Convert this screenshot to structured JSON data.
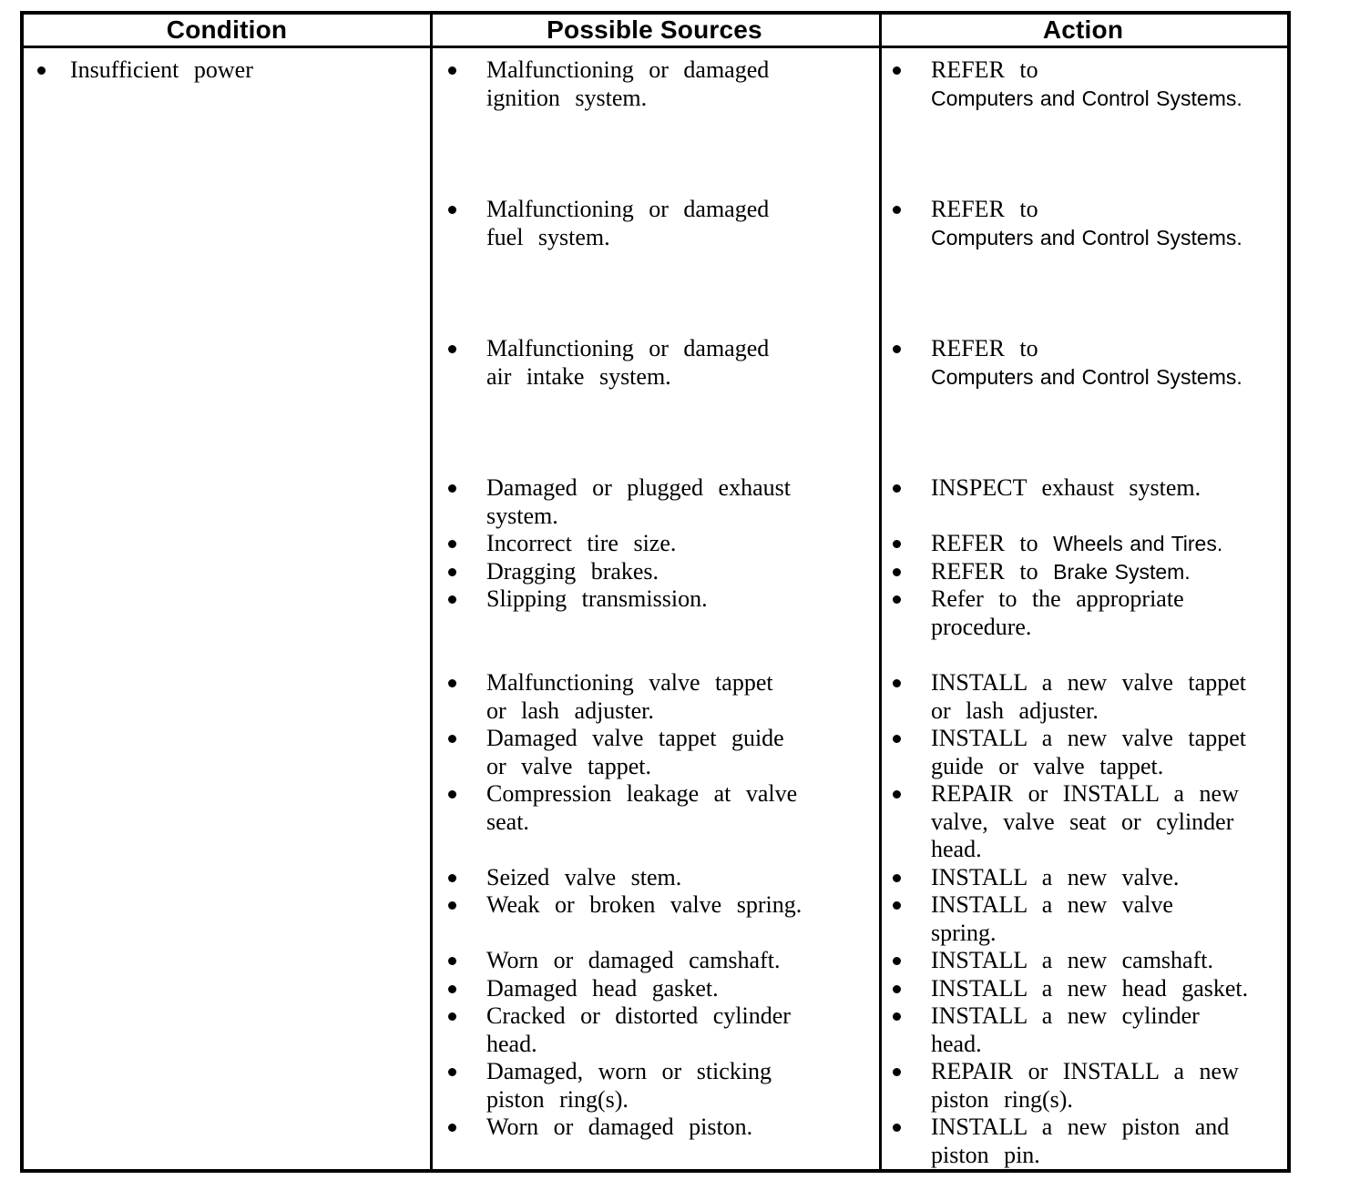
{
  "colors": {
    "ink": "#000000",
    "paper": "#ffffff"
  },
  "table": {
    "headers": [
      "Condition",
      "Possible Sources",
      "Action"
    ],
    "condition": "Insufficient power",
    "rows": [
      {
        "gap": 0,
        "source_lines": [
          [
            {
              "t": "Malfunctioning or damaged"
            }
          ],
          [
            {
              "t": "ignition system."
            }
          ]
        ],
        "action_lines": [
          [
            {
              "t": "REFER to"
            }
          ],
          [
            {
              "t": "Computers and Control Systems.",
              "f": "sans"
            }
          ]
        ]
      },
      {
        "gap": 92,
        "source_lines": [
          [
            {
              "t": "Malfunctioning or damaged"
            }
          ],
          [
            {
              "t": "fuel system."
            }
          ]
        ],
        "action_lines": [
          [
            {
              "t": "REFER to"
            }
          ],
          [
            {
              "t": "Computers and Control Systems.",
              "f": "sans"
            }
          ]
        ]
      },
      {
        "gap": 92,
        "source_lines": [
          [
            {
              "t": "Malfunctioning or damaged"
            }
          ],
          [
            {
              "t": "air intake system."
            }
          ]
        ],
        "action_lines": [
          [
            {
              "t": "REFER to"
            }
          ],
          [
            {
              "t": "Computers and Control Systems.",
              "f": "sans"
            }
          ]
        ]
      },
      {
        "gap": 92,
        "source_lines": [
          [
            {
              "t": "Damaged or plugged exhaust"
            }
          ],
          [
            {
              "t": "system."
            }
          ]
        ],
        "action_lines": [
          [
            {
              "t": "INSPECT exhaust system."
            }
          ]
        ]
      },
      {
        "gap": 0,
        "source_lines": [
          [
            {
              "t": "Incorrect tire size."
            }
          ]
        ],
        "action_lines": [
          [
            {
              "t": "REFER to "
            },
            {
              "t": "Wheels and Tires.",
              "f": "sans"
            }
          ]
        ]
      },
      {
        "gap": 0,
        "source_lines": [
          [
            {
              "t": "Dragging brakes."
            }
          ]
        ],
        "action_lines": [
          [
            {
              "t": "REFER to "
            },
            {
              "t": "Brake System.",
              "f": "sans"
            }
          ]
        ]
      },
      {
        "gap": 0,
        "source_lines": [
          [
            {
              "t": "Slipping transmission."
            }
          ]
        ],
        "action_lines": [
          [
            {
              "t": "Refer to the appropriate"
            }
          ],
          [
            {
              "t": "procedure."
            }
          ]
        ]
      },
      {
        "gap": 31,
        "source_lines": [
          [
            {
              "t": "Malfunctioning valve tappet"
            }
          ],
          [
            {
              "t": "or lash adjuster."
            }
          ]
        ],
        "action_lines": [
          [
            {
              "t": "INSTALL a new valve tappet"
            }
          ],
          [
            {
              "t": "or lash adjuster."
            }
          ]
        ]
      },
      {
        "gap": 0,
        "source_lines": [
          [
            {
              "t": "Damaged valve tappet guide"
            }
          ],
          [
            {
              "t": "or valve tappet."
            }
          ]
        ],
        "action_lines": [
          [
            {
              "t": "INSTALL a new valve tappet"
            }
          ],
          [
            {
              "t": "guide or valve tappet."
            }
          ]
        ]
      },
      {
        "gap": 0,
        "source_lines": [
          [
            {
              "t": "Compression leakage at valve"
            }
          ],
          [
            {
              "t": "seat."
            }
          ]
        ],
        "action_lines": [
          [
            {
              "t": "REPAIR or INSTALL a new"
            }
          ],
          [
            {
              "t": "valve, valve seat or cylinder"
            }
          ],
          [
            {
              "t": "head."
            }
          ]
        ]
      },
      {
        "gap": 0,
        "source_lines": [
          [
            {
              "t": "Seized valve stem."
            }
          ]
        ],
        "action_lines": [
          [
            {
              "t": "INSTALL a new valve."
            }
          ]
        ]
      },
      {
        "gap": 0,
        "source_lines": [
          [
            {
              "t": "Weak or broken valve spring."
            }
          ]
        ],
        "action_lines": [
          [
            {
              "t": "INSTALL a new valve"
            }
          ],
          [
            {
              "t": "spring."
            }
          ]
        ]
      },
      {
        "gap": 0,
        "source_lines": [
          [
            {
              "t": "Worn or damaged camshaft."
            }
          ]
        ],
        "action_lines": [
          [
            {
              "t": "INSTALL a new camshaft."
            }
          ]
        ]
      },
      {
        "gap": 0,
        "source_lines": [
          [
            {
              "t": "Damaged head gasket."
            }
          ]
        ],
        "action_lines": [
          [
            {
              "t": "INSTALL a new head gasket."
            }
          ]
        ]
      },
      {
        "gap": 0,
        "source_lines": [
          [
            {
              "t": "Cracked or distorted cylinder"
            }
          ],
          [
            {
              "t": "head."
            }
          ]
        ],
        "action_lines": [
          [
            {
              "t": "INSTALL a new cylinder"
            }
          ],
          [
            {
              "t": "head."
            }
          ]
        ]
      },
      {
        "gap": 0,
        "source_lines": [
          [
            {
              "t": "Damaged, worn or sticking"
            }
          ],
          [
            {
              "t": "piston ring(s)."
            }
          ]
        ],
        "action_lines": [
          [
            {
              "t": "REPAIR or INSTALL a new"
            }
          ],
          [
            {
              "t": "piston ring(s)."
            }
          ]
        ]
      },
      {
        "gap": 0,
        "source_lines": [
          [
            {
              "t": "Worn or damaged piston."
            }
          ]
        ],
        "action_lines": [
          [
            {
              "t": "INSTALL a new piston and"
            }
          ],
          [
            {
              "t": "piston pin."
            }
          ]
        ]
      }
    ]
  }
}
